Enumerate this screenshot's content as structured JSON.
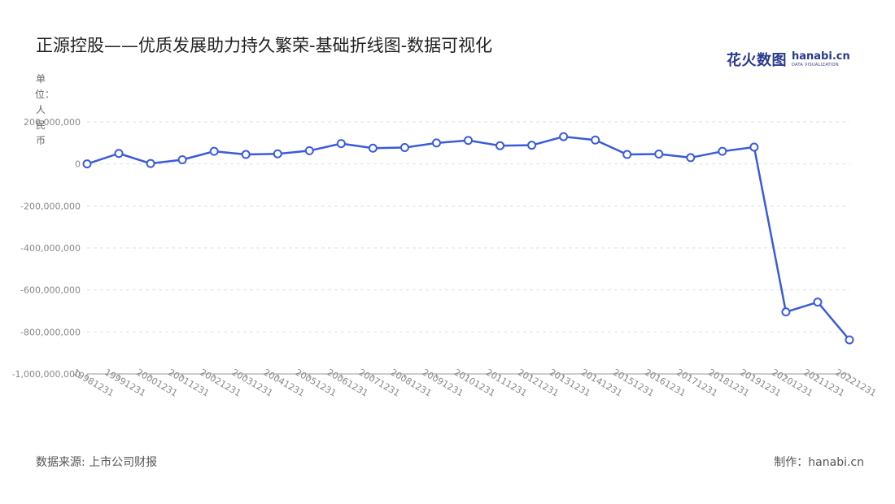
{
  "title": "正源控股——优质发展助力持久繁荣-基础折线图-数据可视化",
  "logo": {
    "main": "花火数图",
    "en": "hanabi.cn",
    "sub": "DATA VISUALIZATION"
  },
  "unit_label": "单位：人民币",
  "source": "数据来源: 上市公司财报",
  "credit": "制作：hanabi.cn",
  "colors": {
    "line": "#3b5bdb",
    "point_fill": "#ffffff",
    "grid": "#e0e0e0",
    "axis": "#999999"
  },
  "chart_data": {
    "type": "line",
    "title": "正源控股——优质发展助力持久繁荣-基础折线图-数据可视化",
    "ylabel": "单位：人民币",
    "xlabel": "",
    "ylim": [
      -1000000000,
      200000000
    ],
    "yticks": [
      200000000,
      0,
      -200000000,
      -400000000,
      -600000000,
      -800000000,
      -1000000000
    ],
    "ytick_labels": [
      "200,000,000",
      "0",
      "-200,000,000",
      "-400,000,000",
      "-600,000,000",
      "-800,000,000",
      "-1,000,000,000"
    ],
    "grid": true,
    "categories": [
      "19981231",
      "19991231",
      "20001231",
      "20011231",
      "20021231",
      "20031231",
      "20041231",
      "20051231",
      "20061231",
      "20071231",
      "20081231",
      "20091231",
      "20101231",
      "20111231",
      "20121231",
      "20131231",
      "20141231",
      "20151231",
      "20161231",
      "20171231",
      "20181231",
      "20191231",
      "20201231",
      "20211231",
      "20221231"
    ],
    "series": [
      {
        "values": [
          0,
          50000000,
          2000000,
          20000000,
          60000000,
          45000000,
          48000000,
          63000000,
          97000000,
          75000000,
          78000000,
          100000000,
          112000000,
          87000000,
          89000000,
          130000000,
          114000000,
          45000000,
          47000000,
          30000000,
          60000000,
          80000000,
          -705000000,
          -658000000,
          -838000000
        ]
      }
    ]
  }
}
